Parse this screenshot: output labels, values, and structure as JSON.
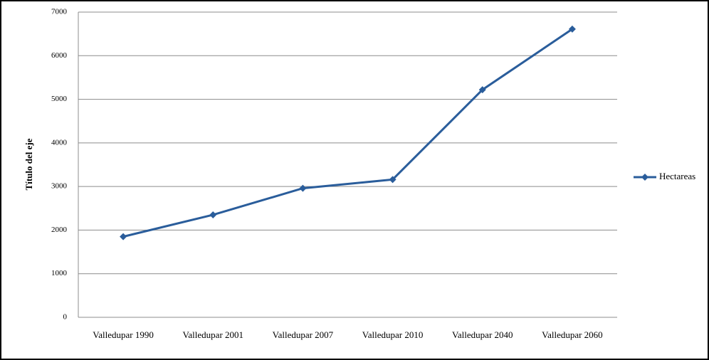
{
  "chart_data": {
    "type": "line",
    "y_label": "Título del eje",
    "categories": [
      "Valledupar 1990",
      "Valledupar 2001",
      "Valledupar 2007",
      "Valledupar 2010",
      "Valledupar 2040",
      "Valledupar 2060"
    ],
    "series": [
      {
        "name": "Hectareas",
        "color": "#2a5d9b",
        "values": [
          1850,
          2350,
          2960,
          3160,
          5220,
          6610
        ]
      }
    ],
    "ylim": [
      0,
      7000
    ],
    "yticks": [
      0,
      1000,
      2000,
      3000,
      4000,
      5000,
      6000,
      7000
    ],
    "grid": true,
    "legend": "right"
  }
}
